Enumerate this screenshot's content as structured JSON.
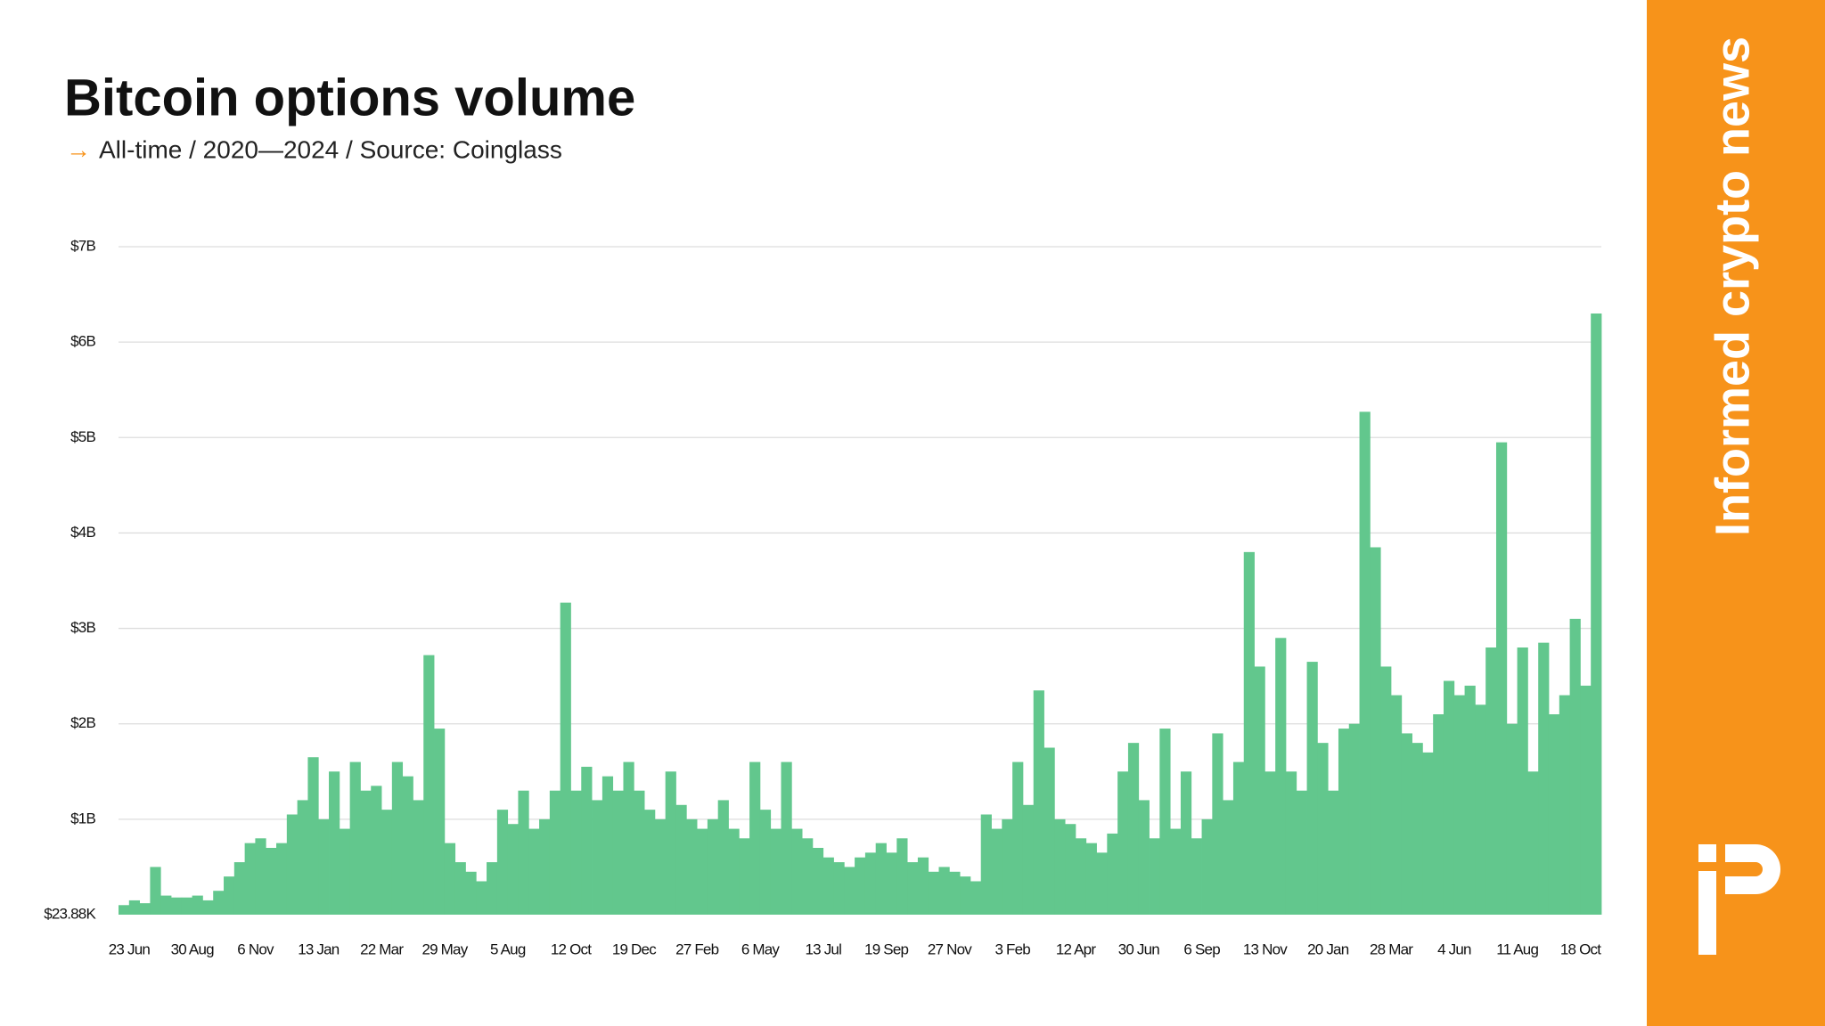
{
  "chart_data": {
    "type": "bar",
    "title": "Bitcoin options volume",
    "subtitle_marker": "→",
    "subtitle": "All-time / 2020—2024 / Source: Coinglass",
    "brand": "Informed crypto news",
    "color": "#62c78d",
    "grid": true,
    "ylim": [
      23880,
      7000000000.0
    ],
    "yticks": [
      {
        "value": 23880,
        "label": "$23.88K"
      },
      {
        "value": 1000000000.0,
        "label": "$1B"
      },
      {
        "value": 2000000000.0,
        "label": "$2B"
      },
      {
        "value": 3000000000.0,
        "label": "$3B"
      },
      {
        "value": 4000000000.0,
        "label": "$4B"
      },
      {
        "value": 5000000000.0,
        "label": "$5B"
      },
      {
        "value": 6000000000.0,
        "label": "$6B"
      },
      {
        "value": 7000000000.0,
        "label": "$7B"
      }
    ],
    "categories": [
      "23 Jun",
      null,
      null,
      null,
      null,
      null,
      "30 Aug",
      null,
      null,
      null,
      null,
      null,
      "6 Nov",
      null,
      null,
      null,
      null,
      null,
      "13 Jan",
      null,
      null,
      null,
      null,
      null,
      "22 Mar",
      null,
      null,
      null,
      null,
      null,
      "29 May",
      null,
      null,
      null,
      null,
      null,
      "5 Aug",
      null,
      null,
      null,
      null,
      null,
      "12 Oct",
      null,
      null,
      null,
      null,
      null,
      "19 Dec",
      null,
      null,
      null,
      null,
      null,
      "27 Feb",
      null,
      null,
      null,
      null,
      null,
      "6 May",
      null,
      null,
      null,
      null,
      null,
      "13 Jul",
      null,
      null,
      null,
      null,
      null,
      "19 Sep",
      null,
      null,
      null,
      null,
      null,
      "27 Nov",
      null,
      null,
      null,
      null,
      null,
      "3 Feb",
      null,
      null,
      null,
      null,
      null,
      "12 Apr",
      null,
      null,
      null,
      null,
      null,
      "30 Jun",
      null,
      null,
      null,
      null,
      null,
      "6 Sep",
      null,
      null,
      null,
      null,
      null,
      "13 Nov",
      null,
      null,
      null,
      null,
      null,
      "20 Jan",
      null,
      null,
      null,
      null,
      null,
      "28 Mar",
      null,
      null,
      null,
      null,
      null,
      "4 Jun",
      null,
      null,
      null,
      null,
      null,
      "11 Aug",
      null,
      null,
      null,
      null,
      null,
      "18 Oct",
      null,
      null
    ],
    "values": [
      100000000.0,
      150000000.0,
      120000000.0,
      500000000.0,
      200000000.0,
      180000000.0,
      180000000.0,
      200000000.0,
      150000000.0,
      250000000.0,
      400000000.0,
      550000000.0,
      750000000.0,
      800000000.0,
      700000000.0,
      750000000.0,
      1050000000.0,
      1200000000.0,
      1650000000.0,
      1000000000.0,
      1500000000.0,
      900000000.0,
      1600000000.0,
      1300000000.0,
      1350000000.0,
      1100000000.0,
      1600000000.0,
      1450000000.0,
      1200000000.0,
      2720000000.0,
      1950000000.0,
      750000000.0,
      550000000.0,
      450000000.0,
      350000000.0,
      550000000.0,
      1100000000.0,
      950000000.0,
      1300000000.0,
      900000000.0,
      1000000000.0,
      1300000000.0,
      3270000000.0,
      1300000000.0,
      1550000000.0,
      1200000000.0,
      1450000000.0,
      1300000000.0,
      1600000000.0,
      1300000000.0,
      1100000000.0,
      1000000000.0,
      1500000000.0,
      1150000000.0,
      1000000000.0,
      900000000.0,
      1000000000.0,
      1200000000.0,
      900000000.0,
      800000000.0,
      1600000000.0,
      1100000000.0,
      900000000.0,
      1600000000.0,
      900000000.0,
      800000000.0,
      700000000.0,
      600000000.0,
      550000000.0,
      500000000.0,
      600000000.0,
      650000000.0,
      750000000.0,
      650000000.0,
      800000000.0,
      550000000.0,
      600000000.0,
      450000000.0,
      500000000.0,
      450000000.0,
      400000000.0,
      350000000.0,
      1050000000.0,
      900000000.0,
      1000000000.0,
      1600000000.0,
      1150000000.0,
      2350000000.0,
      1750000000.0,
      1000000000.0,
      950000000.0,
      800000000.0,
      750000000.0,
      650000000.0,
      850000000.0,
      1500000000.0,
      1800000000.0,
      1200000000.0,
      800000000.0,
      1950000000.0,
      900000000.0,
      1500000000.0,
      800000000.0,
      1000000000.0,
      1900000000.0,
      1200000000.0,
      1600000000.0,
      3800000000.0,
      2600000000.0,
      1500000000.0,
      2900000000.0,
      1500000000.0,
      1300000000.0,
      2650000000.0,
      1800000000.0,
      1300000000.0,
      1950000000.0,
      2000000000.0,
      5270000000.0,
      3850000000.0,
      2600000000.0,
      2300000000.0,
      1900000000.0,
      1800000000.0,
      1700000000.0,
      2100000000.0,
      2450000000.0,
      2300000000.0,
      2400000000.0,
      2200000000.0,
      2800000000.0,
      4950000000.0,
      2000000000.0,
      2800000000.0,
      1500000000.0,
      2850000000.0,
      2100000000.0,
      2300000000.0,
      3100000000.0,
      2400000000.0,
      6300000000.0
    ]
  }
}
